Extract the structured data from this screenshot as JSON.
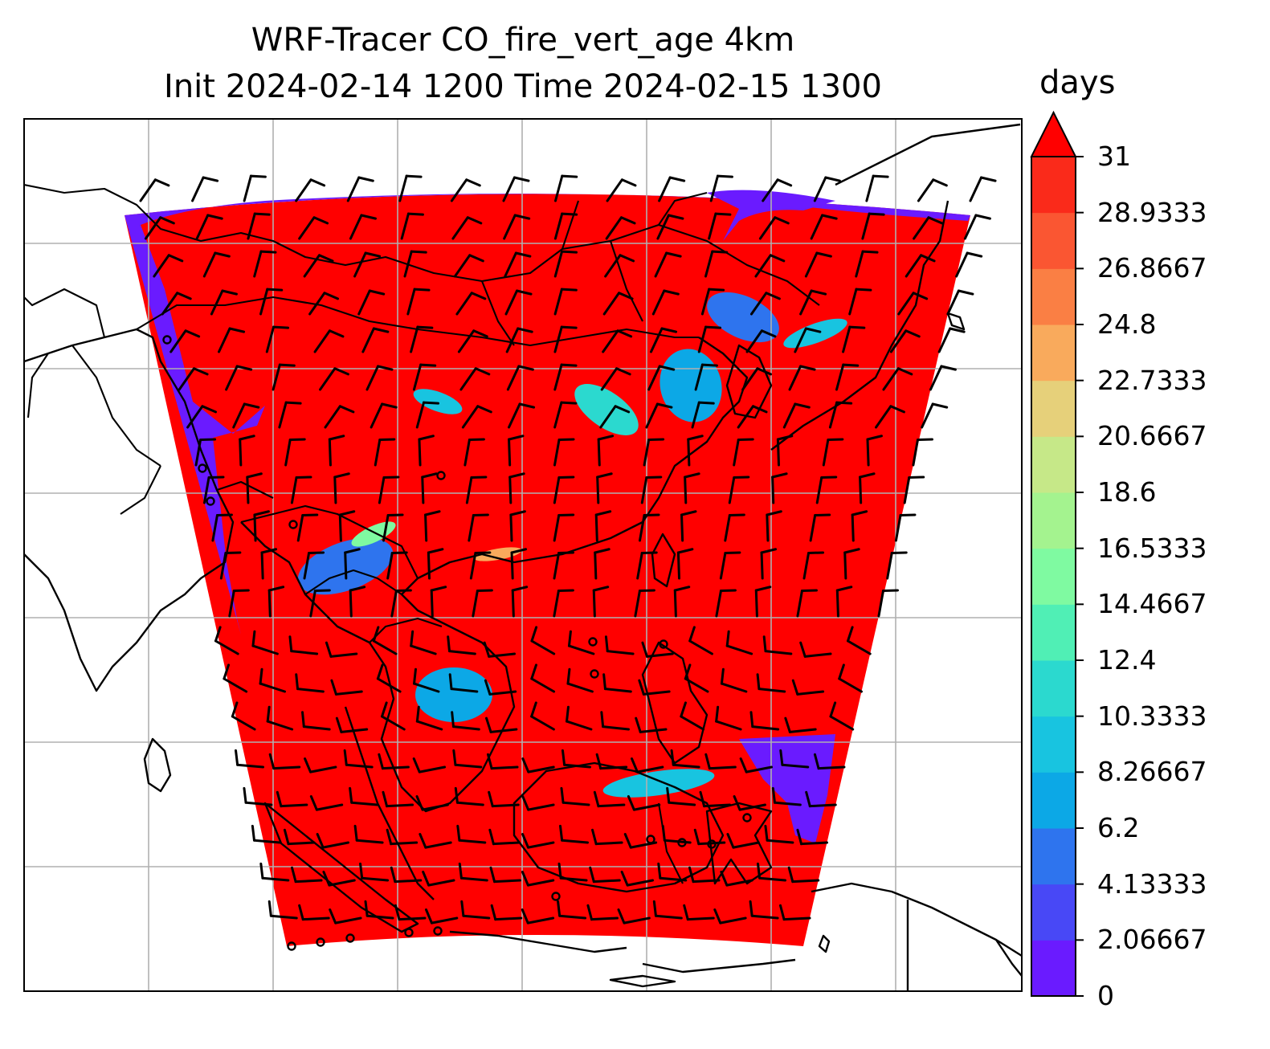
{
  "title": {
    "line1": "WRF-Tracer CO_fire_vert_age 4km",
    "line2": "Init 2024-02-14 1200 Time 2024-02-15 1300"
  },
  "colorbar": {
    "label": "days",
    "min": 0,
    "max": 31,
    "extend": "max",
    "ticks": [
      "0",
      "2.06667",
      "4.13333",
      "6.2",
      "8.26667",
      "10.3333",
      "12.4",
      "14.4667",
      "16.5333",
      "18.6",
      "20.6667",
      "22.7333",
      "24.8",
      "26.8667",
      "28.9333",
      "31"
    ],
    "colors": [
      "#6a1bff",
      "#4848f6",
      "#2e74ee",
      "#0ca8e6",
      "#18c4e0",
      "#2bd9cf",
      "#50efb5",
      "#7ffaa1",
      "#a4f38f",
      "#c6e888",
      "#e6d07a",
      "#f9aa5c",
      "#fa7f44",
      "#fa5632",
      "#fa2a1a",
      "#ff0000"
    ],
    "extend_color": "#ff0000"
  },
  "map": {
    "field": "CO_fire_vert_age",
    "dominant_color": "#ff0000",
    "gridlines": true,
    "overlays": [
      "coastlines",
      "country-borders",
      "wind-barbs"
    ]
  }
}
